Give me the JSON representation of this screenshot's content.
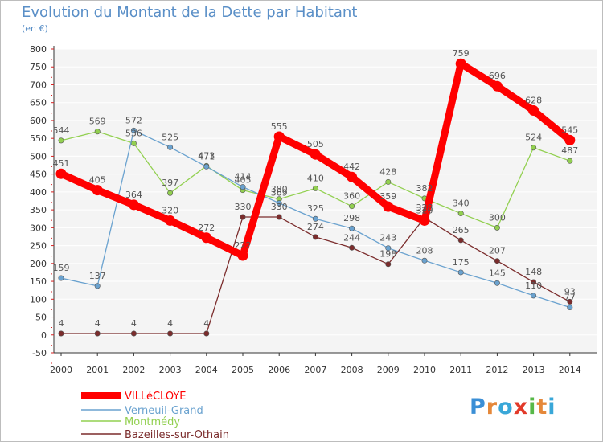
{
  "chart_data": {
    "type": "line",
    "title": "Evolution du Montant de la Dette par Habitant",
    "unit": "(en €)",
    "xlabel": "",
    "ylabel": "",
    "categories": [
      "2000",
      "2001",
      "2002",
      "2003",
      "2004",
      "2005",
      "2006",
      "2007",
      "2008",
      "2009",
      "2010",
      "2011",
      "2012",
      "2013",
      "2014"
    ],
    "ylim": [
      -50,
      800
    ],
    "yticks": [
      -50,
      0,
      50,
      100,
      150,
      200,
      250,
      300,
      350,
      400,
      450,
      500,
      550,
      600,
      650,
      700,
      750,
      800
    ],
    "grid": "horizontal",
    "legend_position": "bottom-left",
    "series": [
      {
        "name": "VILLéCLOYE",
        "color": "#ff0000",
        "values": [
          451,
          405,
          364,
          320,
          272,
          222,
          555,
          505,
          442,
          359,
          320,
          759,
          696,
          628,
          545
        ]
      },
      {
        "name": "Verneuil-Grand",
        "color": "#6aa2cf",
        "values": [
          159,
          137,
          572,
          525,
          471,
          414,
          369,
          325,
          298,
          243,
          208,
          175,
          145,
          110,
          77
        ]
      },
      {
        "name": "Montmédy",
        "color": "#92d050",
        "values": [
          544,
          569,
          536,
          397,
          473,
          405,
          380,
          410,
          360,
          428,
          382,
          340,
          300,
          524,
          487
        ]
      },
      {
        "name": "Bazeilles-sur-Othain",
        "color": "#7b2c2c",
        "values": [
          4,
          4,
          4,
          4,
          4,
          330,
          330,
          274,
          244,
          198,
          328,
          265,
          207,
          148,
          93
        ]
      }
    ]
  },
  "logo": {
    "text": "Proxiti",
    "colors": [
      "#3b8fd6",
      "#e5883a",
      "#39a7d8",
      "#e23a2a",
      "#57b848",
      "#e5883a",
      "#39a7d8"
    ]
  }
}
